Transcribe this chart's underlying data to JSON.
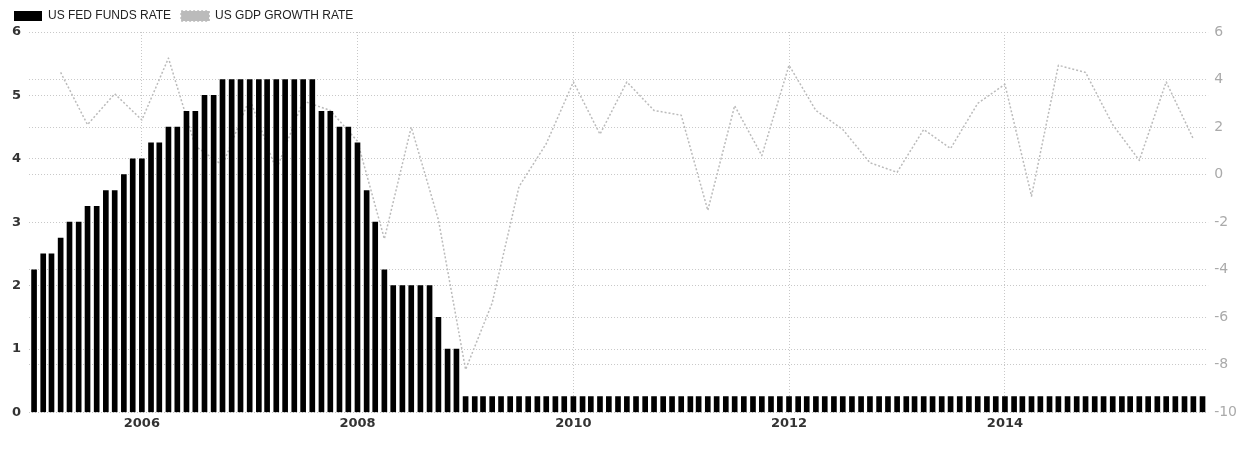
{
  "chart_data": {
    "type": "bar",
    "legend": "top left",
    "grid": true,
    "xlim": [
      "2004-12-15",
      "2015-11-20"
    ],
    "xticks": [
      "2006",
      "2008",
      "2010",
      "2012",
      "2014"
    ],
    "ylim": [
      0,
      6
    ],
    "yticks": [
      0,
      1,
      2,
      3,
      4,
      5,
      6
    ],
    "y2lim": [
      -10,
      6
    ],
    "y2ticks": [
      -10,
      -8,
      -6,
      -4,
      -2,
      0,
      2,
      4,
      6
    ],
    "series": [
      {
        "name": "US FED FUNDS RATE",
        "color": "#000000",
        "x": [
          "2005-01",
          "2005-02",
          "2005-03",
          "2005-04",
          "2005-05",
          "2005-06",
          "2005-07",
          "2005-08",
          "2005-09",
          "2005-10",
          "2005-11",
          "2005-12",
          "2006-01",
          "2006-02",
          "2006-03",
          "2006-04",
          "2006-05",
          "2006-06",
          "2006-07",
          "2006-08",
          "2006-09",
          "2006-10",
          "2006-11",
          "2006-12",
          "2007-01",
          "2007-02",
          "2007-03",
          "2007-04",
          "2007-05",
          "2007-06",
          "2007-07",
          "2007-08",
          "2007-09",
          "2007-10",
          "2007-11",
          "2007-12",
          "2008-01",
          "2008-02",
          "2008-03",
          "2008-04",
          "2008-05",
          "2008-06",
          "2008-07",
          "2008-08",
          "2008-09",
          "2008-10",
          "2008-11",
          "2008-12",
          "2009-01",
          "2009-02",
          "2009-03",
          "2009-04",
          "2009-05",
          "2009-06",
          "2009-07",
          "2009-08",
          "2009-09",
          "2009-10",
          "2009-11",
          "2009-12",
          "2010-01",
          "2010-02",
          "2010-03",
          "2010-04",
          "2010-05",
          "2010-06",
          "2010-07",
          "2010-08",
          "2010-09",
          "2010-10",
          "2010-11",
          "2010-12",
          "2011-01",
          "2011-02",
          "2011-03",
          "2011-04",
          "2011-05",
          "2011-06",
          "2011-07",
          "2011-08",
          "2011-09",
          "2011-10",
          "2011-11",
          "2011-12",
          "2012-01",
          "2012-02",
          "2012-03",
          "2012-04",
          "2012-05",
          "2012-06",
          "2012-07",
          "2012-08",
          "2012-09",
          "2012-10",
          "2012-11",
          "2012-12",
          "2013-01",
          "2013-02",
          "2013-03",
          "2013-04",
          "2013-05",
          "2013-06",
          "2013-07",
          "2013-08",
          "2013-09",
          "2013-10",
          "2013-11",
          "2013-12",
          "2014-01",
          "2014-02",
          "2014-03",
          "2014-04",
          "2014-05",
          "2014-06",
          "2014-07",
          "2014-08",
          "2014-09",
          "2014-10",
          "2014-11",
          "2014-12",
          "2015-01",
          "2015-02",
          "2015-03",
          "2015-04",
          "2015-05",
          "2015-06",
          "2015-07",
          "2015-08",
          "2015-09",
          "2015-10",
          "2015-11"
        ],
        "values": [
          2.25,
          2.5,
          2.5,
          2.75,
          3,
          3,
          3.25,
          3.25,
          3.5,
          3.5,
          3.75,
          4,
          4,
          4.25,
          4.25,
          4.5,
          4.5,
          4.75,
          4.75,
          5,
          5,
          5.25,
          5.25,
          5.25,
          5.25,
          5.25,
          5.25,
          5.25,
          5.25,
          5.25,
          5.25,
          5.25,
          4.75,
          4.75,
          4.5,
          4.5,
          4.25,
          3.5,
          3,
          2.25,
          2,
          2,
          2,
          2,
          2,
          1.5,
          1,
          1,
          0.25,
          0.25,
          0.25,
          0.25,
          0.25,
          0.25,
          0.25,
          0.25,
          0.25,
          0.25,
          0.25,
          0.25,
          0.25,
          0.25,
          0.25,
          0.25,
          0.25,
          0.25,
          0.25,
          0.25,
          0.25,
          0.25,
          0.25,
          0.25,
          0.25,
          0.25,
          0.25,
          0.25,
          0.25,
          0.25,
          0.25,
          0.25,
          0.25,
          0.25,
          0.25,
          0.25,
          0.25,
          0.25,
          0.25,
          0.25,
          0.25,
          0.25,
          0.25,
          0.25,
          0.25,
          0.25,
          0.25,
          0.25,
          0.25,
          0.25,
          0.25,
          0.25,
          0.25,
          0.25,
          0.25,
          0.25,
          0.25,
          0.25,
          0.25,
          0.25,
          0.25,
          0.25,
          0.25,
          0.25,
          0.25,
          0.25,
          0.25,
          0.25,
          0.25,
          0.25,
          0.25,
          0.25,
          0.25,
          0.25,
          0.25,
          0.25,
          0.25,
          0.25,
          0.25,
          0.25,
          0.25,
          0.25,
          0.25
        ]
      },
      {
        "name": "US GDP GROWTH RATE",
        "type": "line",
        "axis": "y2",
        "color": "#bbbbbb",
        "line_style": "dotted",
        "marker": "none",
        "x": [
          "2005-04",
          "2005-07",
          "2005-10",
          "2006-01",
          "2006-04",
          "2006-07",
          "2006-10",
          "2007-01",
          "2007-04",
          "2007-07",
          "2007-10",
          "2008-01",
          "2008-04",
          "2008-07",
          "2008-10",
          "2009-01",
          "2009-04",
          "2009-07",
          "2009-10",
          "2010-01",
          "2010-04",
          "2010-07",
          "2010-10",
          "2011-01",
          "2011-04",
          "2011-07",
          "2011-10",
          "2012-01",
          "2012-04",
          "2012-07",
          "2012-10",
          "2013-01",
          "2013-04",
          "2013-07",
          "2013-10",
          "2014-01",
          "2014-04",
          "2014-07",
          "2014-10",
          "2015-01",
          "2015-04",
          "2015-07",
          "2015-10"
        ],
        "values": [
          4.3,
          2.1,
          3.4,
          2.3,
          4.9,
          1.2,
          0.4,
          3.2,
          0.2,
          3.1,
          2.7,
          1.4,
          -2.7,
          2.0,
          -1.9,
          -8.2,
          -5.4,
          -0.5,
          1.3,
          3.9,
          1.7,
          3.9,
          2.7,
          2.5,
          -1.5,
          2.9,
          0.8,
          4.6,
          2.7,
          1.9,
          0.5,
          0.1,
          1.9,
          1.1,
          3.0,
          3.8,
          -0.9,
          4.6,
          4.3,
          2.1,
          0.6,
          3.9,
          1.5
        ]
      }
    ]
  }
}
